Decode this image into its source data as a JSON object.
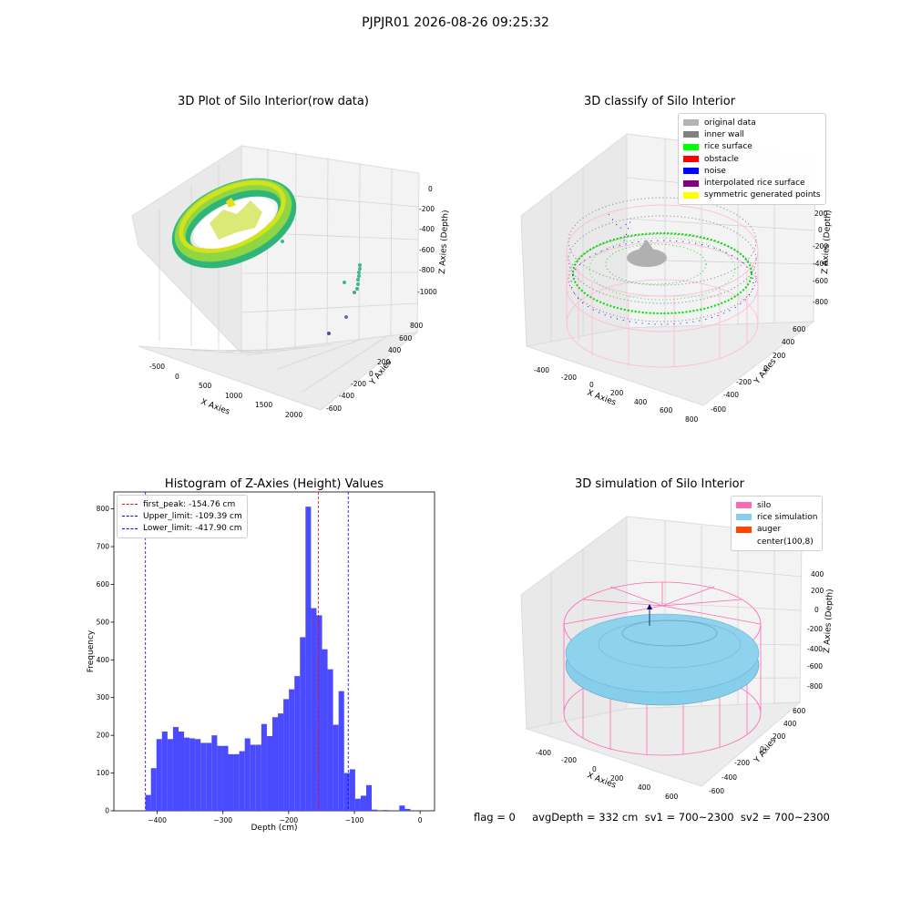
{
  "suptitle": "PJPJR01 2026-08-26 09:25:32",
  "colors": {
    "pane_fill": "#f2f2f2",
    "pane_grid": "#d9d9d9",
    "histogram_bar": "#4a4aff",
    "first_peak_line": "#ff0000",
    "limit_line": "#0000ff",
    "silo_wire": "#ff69b4",
    "rice_simulation": "#87ceeb",
    "auger": "#ff4500"
  },
  "plot_raw": {
    "title": "3D Plot of Silo Interior(row data)",
    "xlabel": "X Axies",
    "ylabel": "Y Axies",
    "zlabel": "Z Axies (Depth)",
    "xticks": [
      "-500",
      "0",
      "500",
      "1000",
      "1500",
      "2000"
    ],
    "yticks": [
      "800",
      "600",
      "400",
      "200",
      "0",
      "-200",
      "-400",
      "-600"
    ],
    "zticks": [
      "0",
      "-200",
      "-400",
      "-600",
      "-800",
      "-1000"
    ]
  },
  "plot_classify": {
    "title": "3D classify of Silo Interior",
    "xlabel": "X Axies",
    "ylabel": "Y Axies",
    "zlabel": "Z Axies (Depth)",
    "xticks": [
      "-400",
      "-200",
      "0",
      "200",
      "400",
      "600",
      "800"
    ],
    "yticks": [
      "600",
      "400",
      "200",
      "0",
      "-200",
      "-400",
      "-600"
    ],
    "zticks": [
      "200",
      "0",
      "-200",
      "-400",
      "-600",
      "-800"
    ],
    "legend": [
      {
        "label": "original data",
        "color": "#b4b4b4",
        "icon": "patch"
      },
      {
        "label": "inner wall",
        "color": "#808080",
        "icon": "patch"
      },
      {
        "label": "rice surface",
        "color": "#00ff00",
        "icon": "patch"
      },
      {
        "label": "obstacle",
        "color": "#ff0000",
        "icon": "patch"
      },
      {
        "label": "noise",
        "color": "#0000ff",
        "icon": "patch"
      },
      {
        "label": "interpolated rice surface",
        "color": "#800080",
        "icon": "patch"
      },
      {
        "label": "symmetric generated points",
        "color": "#ffff00",
        "icon": "patch"
      }
    ]
  },
  "plot_simulation": {
    "title": "3D simulation of Silo Interior",
    "xlabel": "X Axies",
    "ylabel": "Y Axies",
    "zlabel": "Z Axies (Depth)",
    "xticks": [
      "-400",
      "-200",
      "0",
      "200",
      "400",
      "600"
    ],
    "yticks": [
      "600",
      "400",
      "200",
      "0",
      "-200",
      "-400",
      "-600"
    ],
    "zticks": [
      "400",
      "200",
      "0",
      "-200",
      "-400",
      "-600",
      "-800"
    ],
    "legend": [
      {
        "label": "silo",
        "color": "#ff69b4",
        "icon": "patch"
      },
      {
        "label": "rice simulation",
        "color": "#87ceeb",
        "icon": "patch"
      },
      {
        "label": "auger",
        "color": "#ff4500",
        "icon": "patch"
      },
      {
        "label": "center(100,8)",
        "color": "",
        "icon": "none"
      }
    ]
  },
  "status_line": "flag = 0     avgDepth = 332 cm  sv1 = 700~2300  sv2 = 700~2300",
  "chart_data": {
    "type": "bar",
    "title": "Histogram of Z-Axies (Height) Values",
    "xlabel": "Depth (cm)",
    "ylabel": "Frequency",
    "xlim": [
      -466,
      22
    ],
    "ylim": [
      0,
      845
    ],
    "xticks": [
      -400,
      -300,
      -200,
      -100,
      0
    ],
    "yticks": [
      0,
      100,
      200,
      300,
      400,
      500,
      600,
      700,
      800
    ],
    "bin_start": -418,
    "bin_width": 8.4,
    "values": [
      42,
      113,
      190,
      210,
      190,
      222,
      210,
      194,
      192,
      190,
      180,
      180,
      200,
      172,
      172,
      150,
      150,
      158,
      192,
      175,
      175,
      230,
      198,
      248,
      258,
      296,
      322,
      357,
      460,
      806,
      537,
      518,
      428,
      375,
      228,
      317,
      100,
      110,
      32,
      40,
      68,
      3,
      0,
      2,
      0,
      0,
      14,
      5
    ],
    "vlines": [
      {
        "label": "first_peak: -154.76 cm",
        "x": -154.76,
        "color": "#ff0000"
      },
      {
        "label": "Upper_limit: -109.39 cm",
        "x": -109.39,
        "color": "#0000ff"
      },
      {
        "label": "Lower_limit: -417.90 cm",
        "x": -417.9,
        "color": "#0000ff"
      }
    ],
    "grid": false,
    "legend_position": "upper left"
  }
}
